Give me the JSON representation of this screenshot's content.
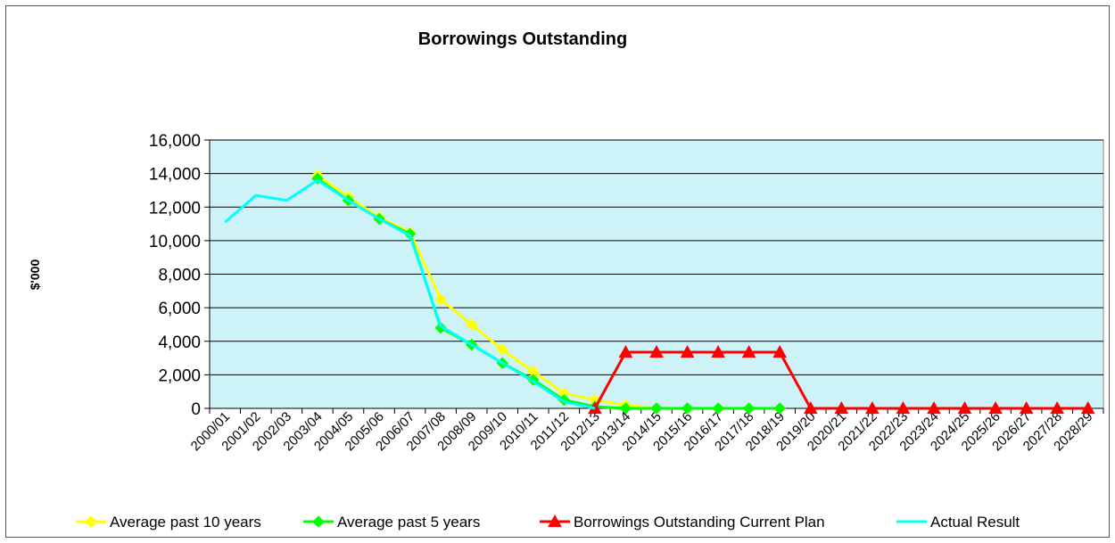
{
  "chart_data": {
    "type": "line",
    "title": "Borrowings Outstanding",
    "ylabel": "$'000",
    "xlabel": "",
    "ylim": [
      0,
      16000
    ],
    "yticks": [
      0,
      2000,
      4000,
      6000,
      8000,
      10000,
      12000,
      14000,
      16000
    ],
    "ytick_labels": [
      "0",
      "2,000",
      "4,000",
      "6,000",
      "8,000",
      "10,000",
      "12,000",
      "14,000",
      "16,000"
    ],
    "grid": true,
    "legend": "bottom",
    "colors": {
      "plot_background": "#cdf3f9",
      "gridline": "#000000"
    },
    "categories": [
      "2000/01",
      "2001/02",
      "2002/03",
      "2003/04",
      "2004/05",
      "2005/06",
      "2006/07",
      "2007/08",
      "2008/09",
      "2009/10",
      "2010/11",
      "2011/12",
      "2012/13",
      "2013/14",
      "2014/15",
      "2015/16",
      "2016/17",
      "2017/18",
      "2018/19",
      "2019/20",
      "2020/21",
      "2021/22",
      "2022/23",
      "2023/24",
      "2024/25",
      "2025/26",
      "2026/27",
      "2027/28",
      "2028/29"
    ],
    "series": [
      {
        "name": "Average past 10 years",
        "color": "#ffff00",
        "marker": "diamond",
        "values": [
          null,
          null,
          null,
          13900,
          12600,
          11400,
          10500,
          6500,
          5000,
          3500,
          2200,
          900,
          500,
          200,
          0,
          0,
          0,
          0,
          0,
          null,
          null,
          null,
          null,
          null,
          null,
          null,
          null,
          null,
          null
        ]
      },
      {
        "name": "Average past 5 years",
        "color": "#00ff00",
        "marker": "diamond",
        "values": [
          null,
          null,
          null,
          13700,
          12400,
          11300,
          10400,
          4800,
          3800,
          2700,
          1700,
          500,
          100,
          0,
          0,
          0,
          0,
          0,
          0,
          null,
          null,
          null,
          null,
          null,
          null,
          null,
          null,
          null,
          null
        ]
      },
      {
        "name": "Borrowings Outstanding Current Plan",
        "color": "#ff0000",
        "marker": "triangle",
        "values": [
          null,
          null,
          null,
          null,
          null,
          null,
          null,
          null,
          null,
          null,
          null,
          null,
          0,
          3350,
          3350,
          3350,
          3350,
          3350,
          3350,
          0,
          0,
          0,
          0,
          0,
          0,
          0,
          0,
          0,
          0
        ]
      },
      {
        "name": "Actual Result",
        "color": "#00ffff",
        "marker": "none",
        "values": [
          11100,
          12700,
          12400,
          13600,
          12400,
          11300,
          10300,
          4900,
          3800,
          2700,
          1600,
          400,
          0,
          null,
          null,
          null,
          null,
          null,
          null,
          null,
          null,
          null,
          null,
          null,
          null,
          null,
          null,
          null,
          null
        ]
      }
    ]
  }
}
